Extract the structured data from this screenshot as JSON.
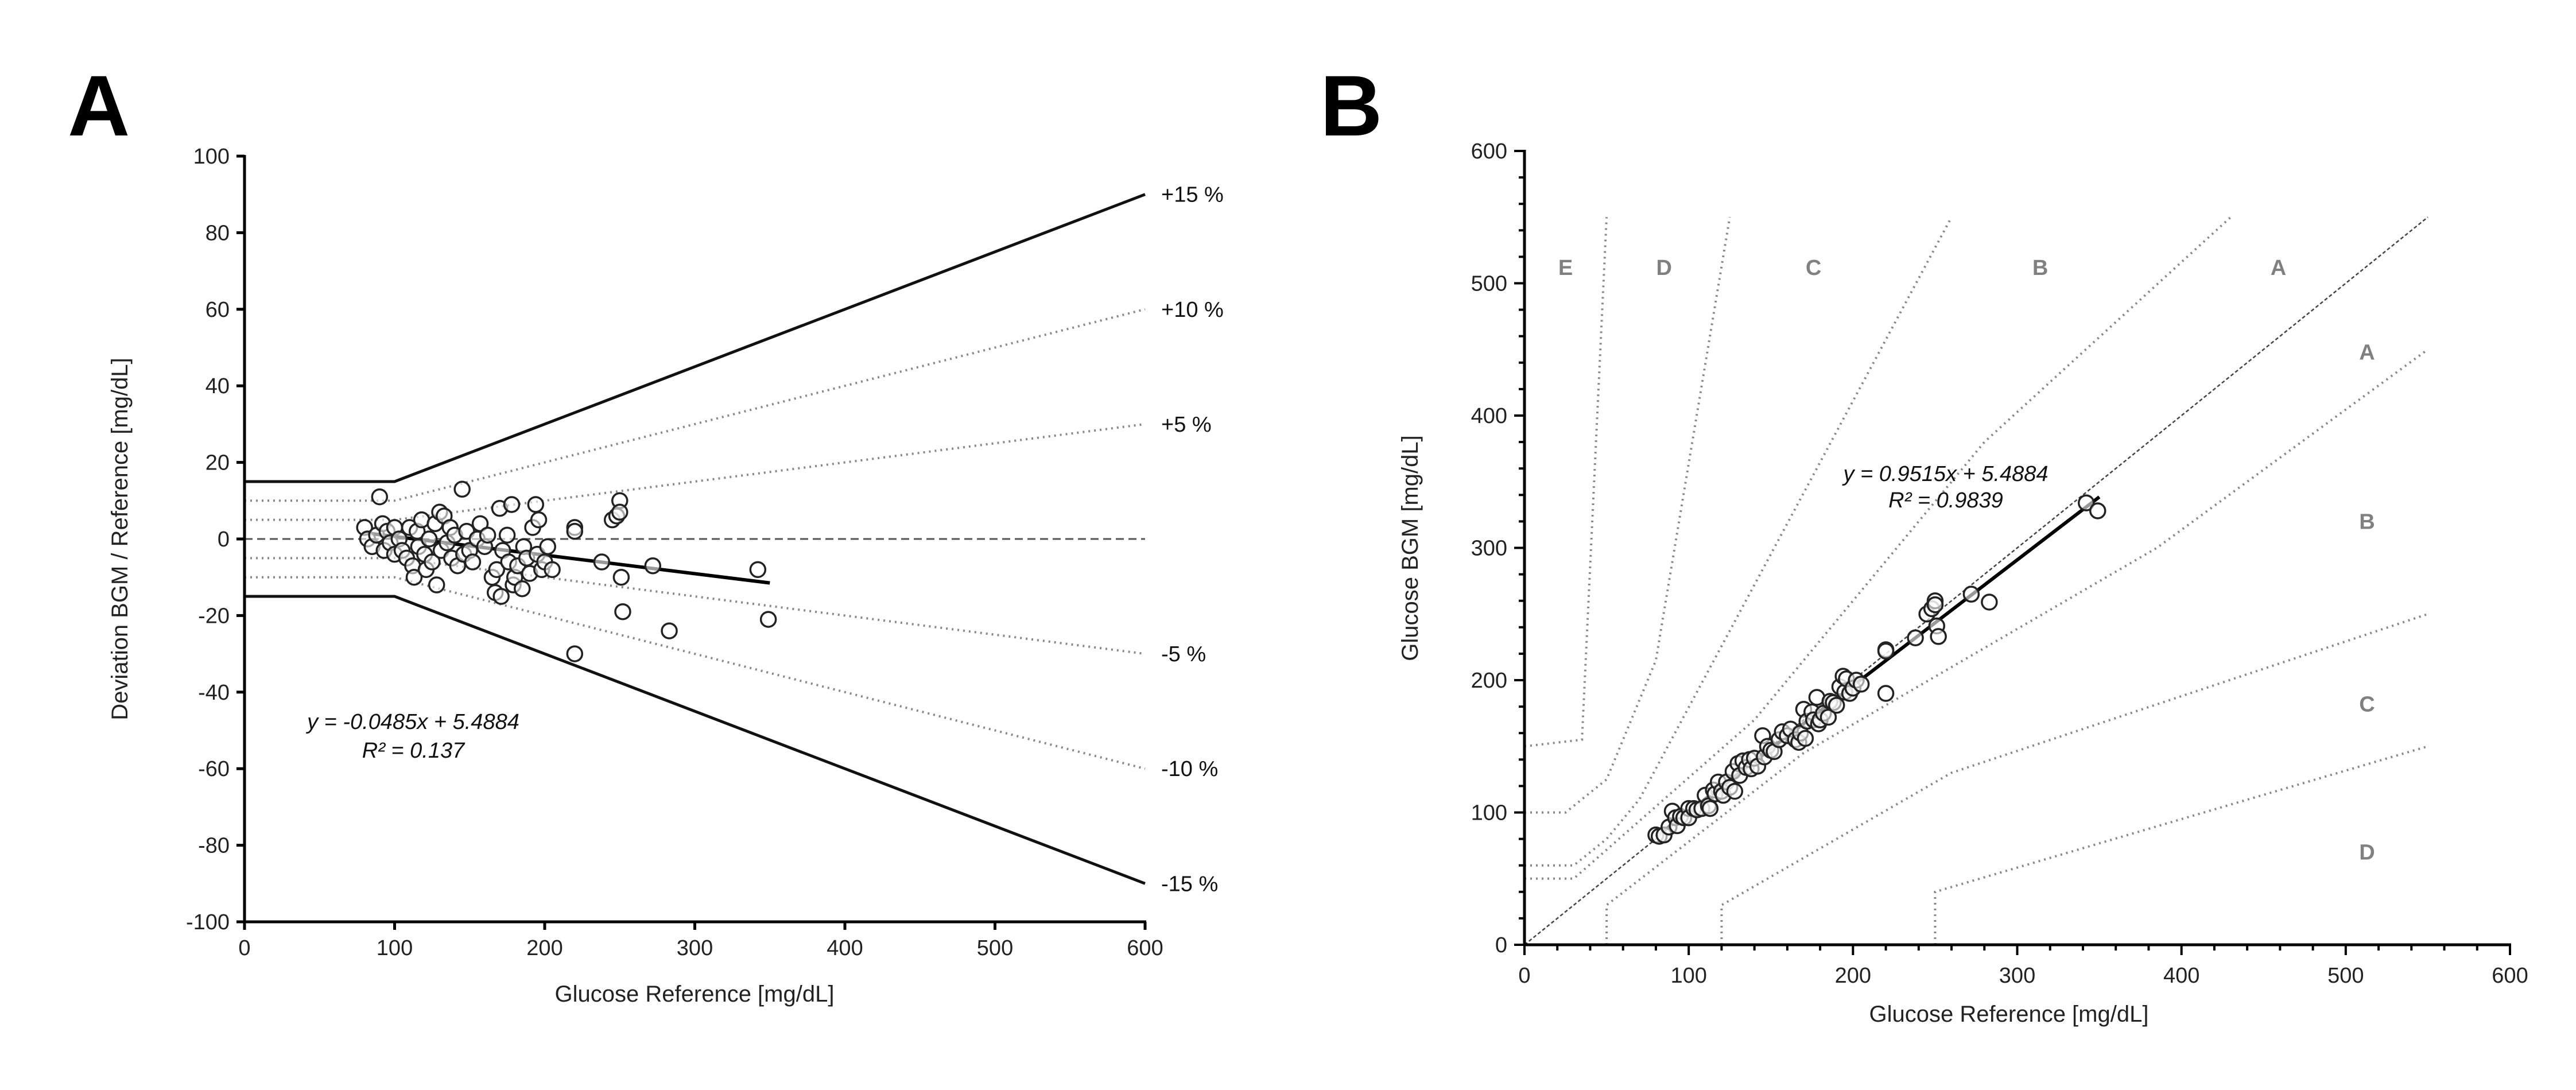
{
  "chart_data": [
    {
      "panel_label": "A",
      "type": "scatter",
      "xlabel": "Glucose Reference [mg/dL]",
      "ylabel": "Deviation BGM / Reference [mg/dL]",
      "xlim": [
        0,
        600
      ],
      "ylim": [
        -100,
        100
      ],
      "xticks": [
        "0",
        "100",
        "200",
        "300",
        "400",
        "500",
        "600"
      ],
      "yticks": [
        "-100",
        "-80",
        "-60",
        "-40",
        "-20",
        "0",
        "20",
        "40",
        "60",
        "80",
        "100"
      ],
      "regression": {
        "slope": -0.0485,
        "intercept": 5.4884,
        "x_range": [
          80,
          350
        ],
        "equation": "y = -0.0485x + 5.4884",
        "r2": "R² = 0.137"
      },
      "limit_lines": [
        {
          "label": "+15 %",
          "points": [
            [
              0,
              15
            ],
            [
              100,
              15
            ],
            [
              600,
              90
            ]
          ],
          "style": "solid"
        },
        {
          "label": "+10 %",
          "points": [
            [
              0,
              10
            ],
            [
              100,
              10
            ],
            [
              600,
              60
            ]
          ],
          "style": "dotted"
        },
        {
          "label": "+5 %",
          "points": [
            [
              0,
              5
            ],
            [
              100,
              5
            ],
            [
              600,
              30
            ]
          ],
          "style": "dotted"
        },
        {
          "label": "-5 %",
          "points": [
            [
              0,
              -5
            ],
            [
              100,
              -5
            ],
            [
              600,
              -30
            ]
          ],
          "style": "dotted"
        },
        {
          "label": "-10 %",
          "points": [
            [
              0,
              -10
            ],
            [
              100,
              -10
            ],
            [
              600,
              -60
            ]
          ],
          "style": "dotted"
        },
        {
          "label": "-15 %",
          "points": [
            [
              0,
              -15
            ],
            [
              100,
              -15
            ],
            [
              600,
              -90
            ]
          ],
          "style": "solid"
        }
      ],
      "points": [
        [
          80,
          3
        ],
        [
          82,
          0
        ],
        [
          85,
          -2
        ],
        [
          88,
          1
        ],
        [
          90,
          11
        ],
        [
          92,
          4
        ],
        [
          93,
          -3
        ],
        [
          95,
          2
        ],
        [
          97,
          -1
        ],
        [
          100,
          3
        ],
        [
          100,
          -4
        ],
        [
          103,
          0
        ],
        [
          105,
          -3
        ],
        [
          108,
          -5
        ],
        [
          110,
          3
        ],
        [
          112,
          -7
        ],
        [
          113,
          -10
        ],
        [
          115,
          2
        ],
        [
          116,
          -2
        ],
        [
          118,
          5
        ],
        [
          120,
          -4
        ],
        [
          121,
          -8
        ],
        [
          123,
          0
        ],
        [
          125,
          -6
        ],
        [
          127,
          4
        ],
        [
          128,
          -12
        ],
        [
          130,
          7
        ],
        [
          131,
          -3
        ],
        [
          133,
          6
        ],
        [
          135,
          -1
        ],
        [
          137,
          3
        ],
        [
          138,
          -5
        ],
        [
          140,
          1
        ],
        [
          142,
          -7
        ],
        [
          145,
          13
        ],
        [
          146,
          -4
        ],
        [
          148,
          2
        ],
        [
          150,
          -3
        ],
        [
          152,
          -6
        ],
        [
          155,
          0
        ],
        [
          157,
          4
        ],
        [
          160,
          -2
        ],
        [
          162,
          1
        ],
        [
          165,
          -10
        ],
        [
          167,
          -14
        ],
        [
          168,
          -8
        ],
        [
          170,
          8
        ],
        [
          171,
          -15
        ],
        [
          172,
          -3
        ],
        [
          175,
          1
        ],
        [
          176,
          -6
        ],
        [
          178,
          9
        ],
        [
          179,
          -12
        ],
        [
          180,
          -10
        ],
        [
          182,
          -7
        ],
        [
          185,
          -13
        ],
        [
          186,
          -2
        ],
        [
          188,
          -5
        ],
        [
          190,
          -9
        ],
        [
          192,
          3
        ],
        [
          194,
          9
        ],
        [
          195,
          -4
        ],
        [
          196,
          5
        ],
        [
          198,
          -8
        ],
        [
          200,
          -6
        ],
        [
          202,
          -2
        ],
        [
          205,
          -8
        ],
        [
          220,
          3
        ],
        [
          220,
          2
        ],
        [
          220,
          -30
        ],
        [
          238,
          -6
        ],
        [
          245,
          5
        ],
        [
          248,
          6
        ],
        [
          250,
          10
        ],
        [
          250,
          7
        ],
        [
          251,
          -10
        ],
        [
          252,
          -19
        ],
        [
          272,
          -7
        ],
        [
          283,
          -24
        ],
        [
          342,
          -8
        ],
        [
          349,
          -21
        ]
      ]
    },
    {
      "panel_label": "B",
      "type": "scatter",
      "xlabel": "Glucose Reference [mg/dL]",
      "ylabel": "Glucose BGM [mg/dL]",
      "xlim": [
        0,
        600
      ],
      "ylim": [
        0,
        600
      ],
      "xticks": [
        "0",
        "100",
        "200",
        "300",
        "400",
        "500",
        "600"
      ],
      "yticks": [
        "0",
        "100",
        "200",
        "300",
        "400",
        "500",
        "600"
      ],
      "regression": {
        "slope": 0.9515,
        "intercept": 5.4884,
        "x_range": [
          80,
          350
        ],
        "equation": "y = 0.9515x + 5.4884",
        "r2": "R² = 0.9839"
      },
      "zone_lines": [
        [
          [
            0,
            50
          ],
          [
            30,
            50
          ],
          [
            140,
            170
          ],
          [
            280,
            380
          ],
          [
            430,
            550
          ]
        ],
        [
          [
            50,
            0
          ],
          [
            50,
            30
          ],
          [
            170,
            145
          ],
          [
            385,
            300
          ],
          [
            550,
            450
          ]
        ],
        [
          [
            0,
            60
          ],
          [
            30,
            60
          ],
          [
            50,
            80
          ],
          [
            70,
            110
          ],
          [
            260,
            550
          ]
        ],
        [
          [
            120,
            0
          ],
          [
            120,
            30
          ],
          [
            260,
            130
          ],
          [
            550,
            250
          ]
        ],
        [
          [
            0,
            100
          ],
          [
            25,
            100
          ],
          [
            50,
            125
          ],
          [
            80,
            215
          ],
          [
            125,
            550
          ]
        ],
        [
          [
            250,
            0
          ],
          [
            250,
            40
          ],
          [
            550,
            150
          ]
        ],
        [
          [
            0,
            150
          ],
          [
            35,
            155
          ],
          [
            50,
            550
          ]
        ]
      ],
      "identity_line": [
        [
          0,
          0
        ],
        [
          550,
          550
        ]
      ],
      "zone_labels": [
        {
          "text": "E",
          "at": [
            25,
            512
          ]
        },
        {
          "text": "D",
          "at": [
            85,
            512
          ]
        },
        {
          "text": "C",
          "at": [
            176,
            512
          ]
        },
        {
          "text": "B",
          "at": [
            314,
            512
          ]
        },
        {
          "text": "A",
          "at": [
            459,
            512
          ]
        },
        {
          "text": "A",
          "at": [
            513,
            448
          ]
        },
        {
          "text": "B",
          "at": [
            513,
            320
          ]
        },
        {
          "text": "C",
          "at": [
            513,
            182
          ]
        },
        {
          "text": "D",
          "at": [
            513,
            70
          ]
        }
      ]
    }
  ]
}
